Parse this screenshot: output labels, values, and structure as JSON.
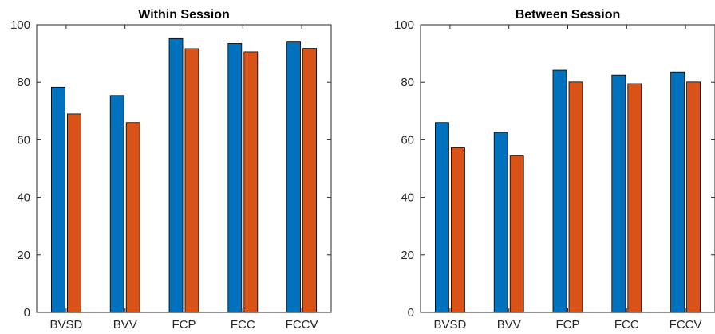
{
  "chart_data": [
    {
      "type": "bar",
      "title": "Within Session",
      "categories": [
        "BVSD",
        "BVV",
        "FCP",
        "FCC",
        "FCCV"
      ],
      "series": [
        {
          "color": "#0072BD",
          "values": [
            78.3,
            75.4,
            95.2,
            93.5,
            94.0
          ]
        },
        {
          "color": "#D95319",
          "values": [
            69.0,
            66.0,
            91.7,
            90.6,
            91.8
          ]
        }
      ],
      "xlabel": "",
      "ylabel": "",
      "ylim": [
        0,
        100
      ],
      "yticks": [
        0,
        20,
        40,
        60,
        80,
        100
      ],
      "grid": false
    },
    {
      "type": "bar",
      "title": "Between Session",
      "categories": [
        "BVSD",
        "BVV",
        "FCP",
        "FCC",
        "FCCV"
      ],
      "series": [
        {
          "color": "#0072BD",
          "values": [
            66.0,
            62.6,
            84.2,
            82.5,
            83.6
          ]
        },
        {
          "color": "#D95319",
          "values": [
            57.2,
            54.4,
            80.1,
            79.5,
            80.1
          ]
        }
      ],
      "xlabel": "",
      "ylabel": "",
      "ylim": [
        0,
        100
      ],
      "yticks": [
        0,
        20,
        40,
        60,
        80,
        100
      ],
      "grid": false
    }
  ]
}
